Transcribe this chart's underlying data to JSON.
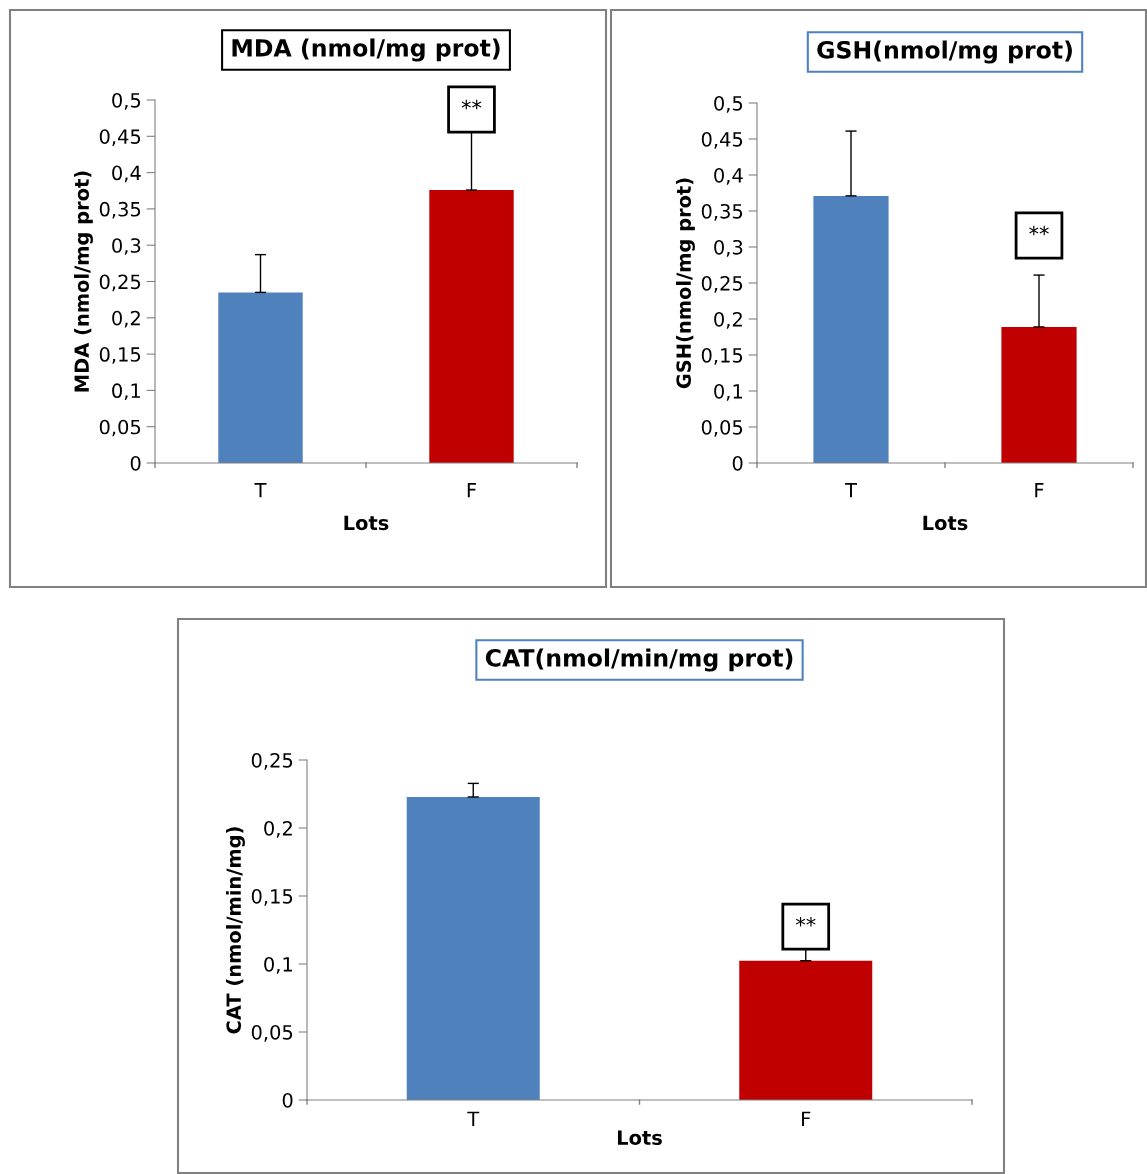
{
  "chart_data": [
    {
      "type": "bar",
      "title": "MDA (nmol/mg prot)",
      "xlabel": "Lots",
      "ylabel": "MDA (nmol/mg prot)",
      "categories": [
        "T",
        "F"
      ],
      "values": [
        0.235,
        0.376
      ],
      "colors": [
        "#4f81bd",
        "#c00000"
      ],
      "errors": [
        [
          0.235,
          0.287
        ],
        [
          0.376,
          0.457
        ]
      ],
      "ylim": [
        0,
        0.5
      ],
      "yticks": [
        0,
        {
          "value": 0.05,
          "label": "0,05"
        },
        {
          "value": 0.1,
          "label": "0,1"
        },
        {
          "value": 0.15,
          "label": "0,15"
        },
        {
          "value": 0.2,
          "label": "0,2"
        },
        {
          "value": 0.25,
          "label": "0,25"
        },
        {
          "value": 0.3,
          "label": "0,3"
        },
        {
          "value": 0.35,
          "label": "0,35"
        },
        {
          "value": 0.4,
          "label": "0,4"
        },
        {
          "value": 0.45,
          "label": "0,45"
        },
        {
          "value": 0.5,
          "label": "0,5"
        }
      ],
      "grid": false,
      "legend": false,
      "annotations": [
        "**"
      ]
    },
    {
      "type": "bar",
      "title": "GSH(nmol/mg prot)",
      "xlabel": "Lots",
      "ylabel": "GSH(nmol/mg prot)",
      "categories": [
        "T",
        "F"
      ],
      "values": [
        0.371,
        0.189
      ],
      "colors": [
        "#4f81bd",
        "#c00000"
      ],
      "errors": [
        [
          0.371,
          0.461
        ],
        [
          0.189,
          0.261
        ]
      ],
      "ylim": [
        0,
        0.5
      ],
      "yticks": [
        0,
        {
          "value": 0.05,
          "label": "0,05"
        },
        {
          "value": 0.1,
          "label": "0,1"
        },
        {
          "value": 0.15,
          "label": "0,15"
        },
        {
          "value": 0.2,
          "label": "0,2"
        },
        {
          "value": 0.25,
          "label": "0,25"
        },
        {
          "value": 0.3,
          "label": "0,3"
        },
        {
          "value": 0.35,
          "label": "0,35"
        },
        {
          "value": 0.4,
          "label": "0,4"
        },
        {
          "value": 0.45,
          "label": "0,45"
        },
        {
          "value": 0.5,
          "label": "0,5"
        }
      ],
      "grid": false,
      "legend": false,
      "annotations": [
        "**"
      ]
    },
    {
      "type": "bar",
      "title": "CAT(nmol/min/mg prot)",
      "xlabel": "Lots",
      "ylabel": "CAT (nmol/min/mg)",
      "categories": [
        "T",
        "F"
      ],
      "values": [
        0.2228,
        0.1024
      ],
      "colors": [
        "#4f81bd",
        "#c00000"
      ],
      "errors": [
        [
          0.2228,
          0.2328
        ],
        [
          0.1024,
          0.1125
        ]
      ],
      "ylim": [
        0,
        0.25
      ],
      "yticks": [
        0,
        {
          "value": 0.05,
          "label": "0,05"
        },
        {
          "value": 0.1,
          "label": "0,1"
        },
        {
          "value": 0.15,
          "label": "0,15"
        },
        {
          "value": 0.2,
          "label": "0,2"
        },
        {
          "value": 0.25,
          "label": "0,25"
        }
      ],
      "grid": false,
      "legend": false,
      "annotations": [
        "**"
      ]
    }
  ]
}
